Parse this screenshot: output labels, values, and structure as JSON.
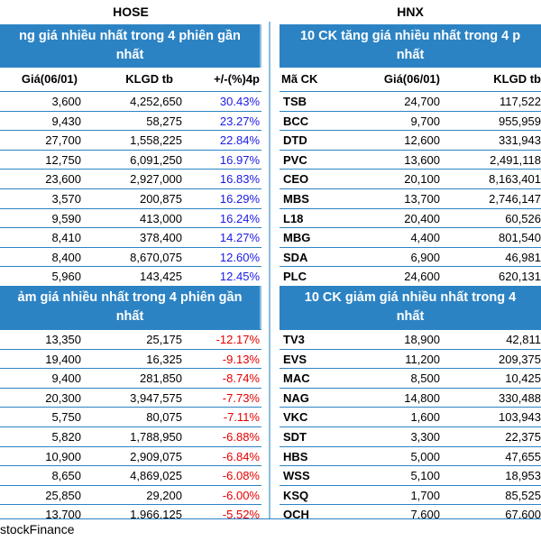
{
  "hose": {
    "label": "HOSE",
    "gainers_title": [
      "ng giá nhiều nhất trong 4 phiên gần",
      "nhất"
    ],
    "losers_title": [
      "ảm giá nhiều nhất trong 4 phiên gần",
      "nhất"
    ],
    "columns": {
      "price": "Giá(06/01)",
      "volume": "KLGD tb",
      "change": "+/-(%)4p"
    },
    "gainers": [
      {
        "price": "3,600",
        "volume": "4,252,650",
        "change": "30.43%"
      },
      {
        "price": "9,430",
        "volume": "58,275",
        "change": "23.27%"
      },
      {
        "price": "27,700",
        "volume": "1,558,225",
        "change": "22.84%"
      },
      {
        "price": "12,750",
        "volume": "6,091,250",
        "change": "16.97%"
      },
      {
        "price": "23,600",
        "volume": "2,927,000",
        "change": "16.83%"
      },
      {
        "price": "3,570",
        "volume": "200,875",
        "change": "16.29%"
      },
      {
        "price": "9,590",
        "volume": "413,000",
        "change": "16.24%"
      },
      {
        "price": "8,410",
        "volume": "378,400",
        "change": "14.27%"
      },
      {
        "price": "8,400",
        "volume": "8,670,075",
        "change": "12.60%"
      },
      {
        "price": "5,960",
        "volume": "143,425",
        "change": "12.45%"
      }
    ],
    "losers": [
      {
        "price": "13,350",
        "volume": "25,175",
        "change": "-12.17%"
      },
      {
        "price": "19,400",
        "volume": "16,325",
        "change": "-9.13%"
      },
      {
        "price": "9,400",
        "volume": "281,850",
        "change": "-8.74%"
      },
      {
        "price": "20,300",
        "volume": "3,947,575",
        "change": "-7.73%"
      },
      {
        "price": "5,750",
        "volume": "80,075",
        "change": "-7.11%"
      },
      {
        "price": "5,820",
        "volume": "1,788,950",
        "change": "-6.88%"
      },
      {
        "price": "10,900",
        "volume": "2,909,075",
        "change": "-6.84%"
      },
      {
        "price": "8,650",
        "volume": "4,869,025",
        "change": "-6.08%"
      },
      {
        "price": "25,850",
        "volume": "29,200",
        "change": "-6.00%"
      },
      {
        "price": "13,700",
        "volume": "1,966,125",
        "change": "-5.52%"
      }
    ]
  },
  "hnx": {
    "label": "HNX",
    "gainers_title": [
      "10 CK tăng giá nhiều nhất trong 4 p",
      "nhất"
    ],
    "losers_title": [
      "10 CK giảm giá nhiều nhất trong 4",
      "nhất"
    ],
    "columns": {
      "code": "Mã CK",
      "price": "Giá(06/01)",
      "volume": "KLGD tb"
    },
    "gainers": [
      {
        "code": "TSB",
        "price": "24,700",
        "volume": "117,522"
      },
      {
        "code": "BCC",
        "price": "9,700",
        "volume": "955,959"
      },
      {
        "code": "DTD",
        "price": "12,600",
        "volume": "331,943"
      },
      {
        "code": "PVC",
        "price": "13,600",
        "volume": "2,491,118"
      },
      {
        "code": "CEO",
        "price": "20,100",
        "volume": "8,163,401"
      },
      {
        "code": "MBS",
        "price": "13,700",
        "volume": "2,746,147"
      },
      {
        "code": "L18",
        "price": "20,400",
        "volume": "60,526"
      },
      {
        "code": "MBG",
        "price": "4,400",
        "volume": "801,540"
      },
      {
        "code": "SDA",
        "price": "6,900",
        "volume": "46,981"
      },
      {
        "code": "PLC",
        "price": "24,600",
        "volume": "620,131"
      }
    ],
    "losers": [
      {
        "code": "TV3",
        "price": "18,900",
        "volume": "42,811"
      },
      {
        "code": "EVS",
        "price": "11,200",
        "volume": "209,375"
      },
      {
        "code": "MAC",
        "price": "8,500",
        "volume": "10,425"
      },
      {
        "code": "NAG",
        "price": "14,800",
        "volume": "330,488"
      },
      {
        "code": "VKC",
        "price": "1,600",
        "volume": "103,943"
      },
      {
        "code": "SDT",
        "price": "3,300",
        "volume": "22,375"
      },
      {
        "code": "HBS",
        "price": "5,000",
        "volume": "47,655"
      },
      {
        "code": "WSS",
        "price": "5,100",
        "volume": "18,953"
      },
      {
        "code": "KSQ",
        "price": "1,700",
        "volume": "85,525"
      },
      {
        "code": "OCH",
        "price": "7,600",
        "volume": "67,600"
      }
    ]
  },
  "footer": {
    "source": "stockFinance"
  },
  "colors": {
    "header_bg": "#2c83c4",
    "positive": "#1a1ae6",
    "negative": "#e60000"
  }
}
